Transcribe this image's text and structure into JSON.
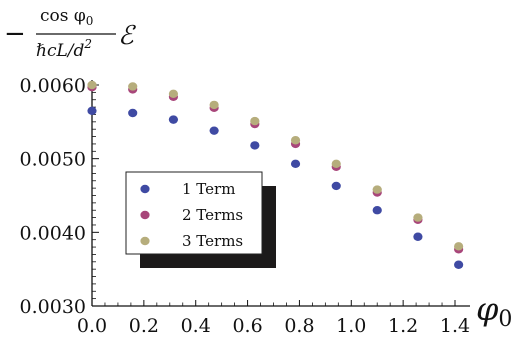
{
  "chart_data": {
    "type": "scatter",
    "y_title": {
      "prefix": "−",
      "numerator": "cos φ",
      "numerator_sub": "0",
      "denominator": "ℏcL/d",
      "denominator_sup": "2",
      "symbol": "ℰ"
    },
    "x_title": {
      "symbol": "φ",
      "sub": "0"
    },
    "xlim": [
      0.0,
      1.45
    ],
    "ylim": [
      0.003,
      0.0061
    ],
    "x_ticks": [
      {
        "value": 0.0,
        "label": "0.0"
      },
      {
        "value": 0.2,
        "label": "0.2"
      },
      {
        "value": 0.4,
        "label": "0.4"
      },
      {
        "value": 0.6,
        "label": "0.6"
      },
      {
        "value": 0.8,
        "label": "0.8"
      },
      {
        "value": 1.0,
        "label": "1.0"
      },
      {
        "value": 1.2,
        "label": "1.2"
      },
      {
        "value": 1.4,
        "label": "1.4"
      }
    ],
    "y_ticks": [
      {
        "value": 0.003,
        "label": "0.0030"
      },
      {
        "value": 0.004,
        "label": "0.0040"
      },
      {
        "value": 0.005,
        "label": "0.0050"
      },
      {
        "value": 0.006,
        "label": "0.0060"
      }
    ],
    "legend_position": "center-left",
    "grid": false,
    "x": [
      0.0,
      0.157,
      0.314,
      0.471,
      0.628,
      0.785,
      0.942,
      1.1,
      1.257,
      1.414
    ],
    "series": [
      {
        "name": "1 Term",
        "color": "#3f4aa3",
        "values": [
          0.00565,
          0.00562,
          0.00553,
          0.00538,
          0.00518,
          0.00493,
          0.00463,
          0.0043,
          0.00394,
          0.00356
        ]
      },
      {
        "name": "2 Terms",
        "color": "#a8467a",
        "values": [
          0.00597,
          0.00594,
          0.00584,
          0.00569,
          0.00547,
          0.0052,
          0.00489,
          0.00454,
          0.00417,
          0.00377
        ]
      },
      {
        "name": "3 Terms",
        "color": "#b6ad7c",
        "values": [
          0.006,
          0.00598,
          0.00588,
          0.00573,
          0.00551,
          0.00525,
          0.00493,
          0.00458,
          0.0042,
          0.00381
        ]
      }
    ]
  }
}
